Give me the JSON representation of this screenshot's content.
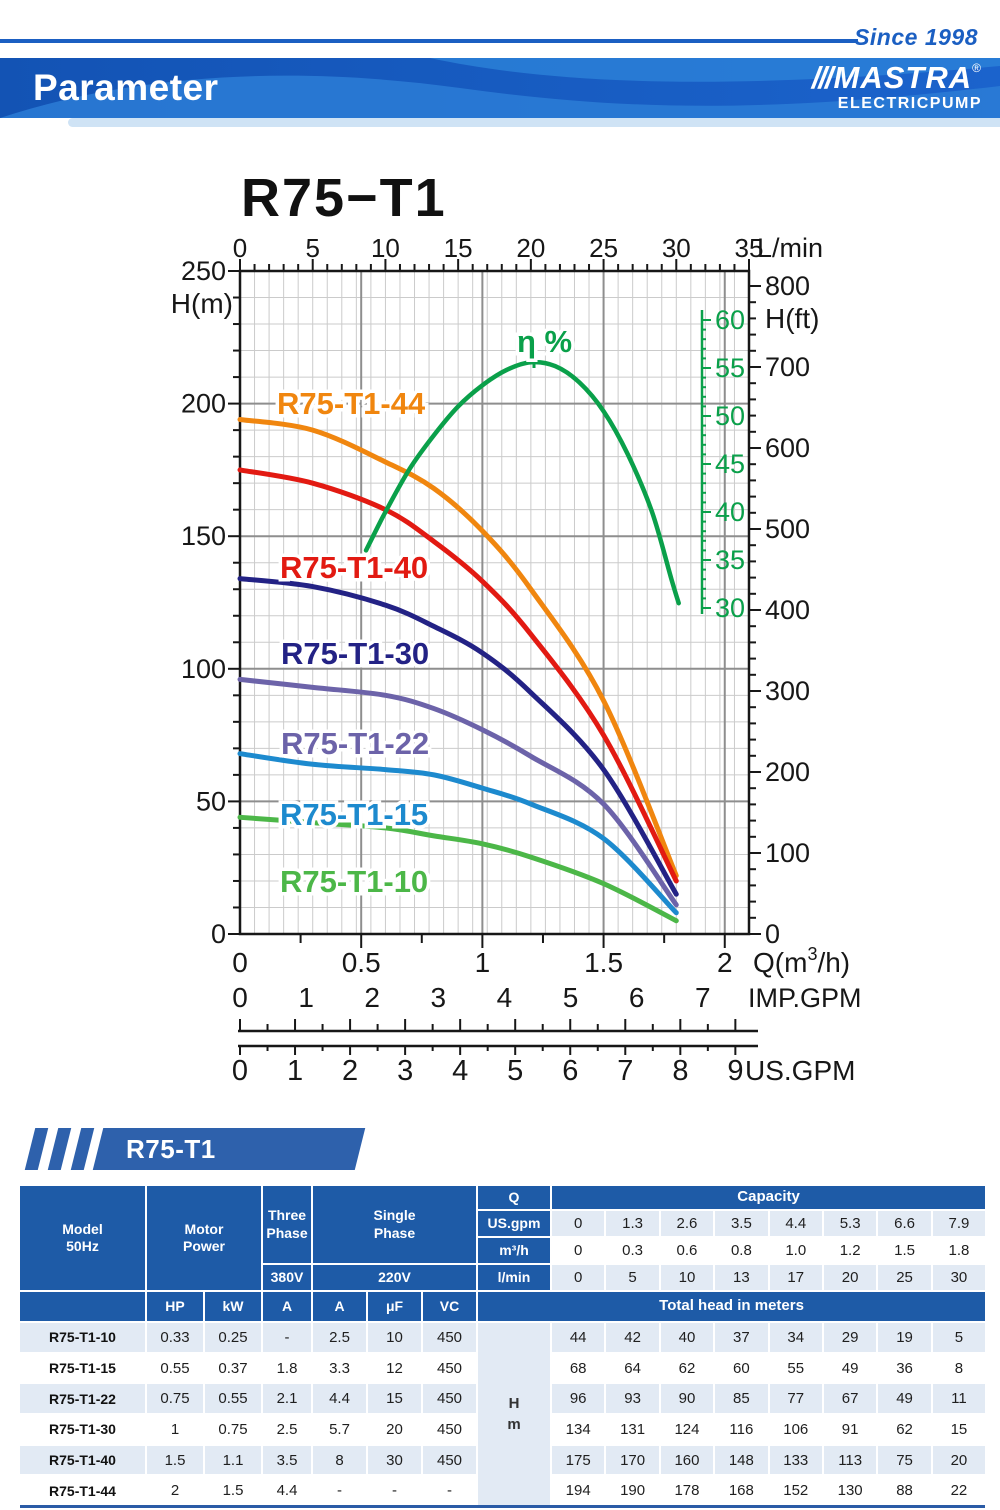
{
  "header": {
    "since": "Since 1998",
    "title": "Parameter",
    "brand": "MASTRA",
    "registered": "®",
    "brand_sub": "ELECTRICPUMP",
    "logo_slashes": "///",
    "accent_blue": "#1b5fc2"
  },
  "section": {
    "label": "R75-T1"
  },
  "chart_data": {
    "type": "line",
    "title": "R75−T1",
    "axes": {
      "top": {
        "label": "L/min",
        "ticks": [
          0,
          5,
          10,
          15,
          20,
          25,
          30,
          35
        ],
        "range": [
          0,
          35
        ]
      },
      "left": {
        "label": "H(m)",
        "ticks": [
          250,
          200,
          150,
          100,
          50,
          0
        ],
        "range": [
          0,
          250
        ]
      },
      "right": {
        "label": "H(ft)",
        "ticks": [
          800,
          700,
          600,
          500,
          400,
          300,
          200,
          100,
          0
        ],
        "range": [
          0,
          800
        ]
      },
      "efficiency": {
        "label": "η %",
        "ticks": [
          60,
          55,
          50,
          45,
          40,
          35,
          30
        ],
        "range": [
          30,
          60
        ],
        "color": "#0aa04a"
      },
      "bottom_q": {
        "label": "Q(m³/h)",
        "ticks": [
          "0",
          "0.5",
          "1",
          "1.5",
          "2"
        ],
        "range": [
          0,
          2.1
        ]
      },
      "bottom_imp": {
        "label": "IMP.GPM",
        "ticks": [
          0,
          1,
          2,
          3,
          4,
          5,
          6,
          7
        ]
      },
      "bottom_us": {
        "label": "US.GPM",
        "ticks": [
          0,
          1,
          2,
          3,
          4,
          5,
          6,
          7,
          8,
          9
        ]
      }
    },
    "grid": {
      "minor_color": "#cbcbcb",
      "major_color": "#8e8e8e",
      "axis_color": "#171717"
    },
    "q_values": [
      0,
      0.3,
      0.6,
      0.8,
      1.0,
      1.2,
      1.5,
      1.8
    ],
    "series": [
      {
        "name": "R75-T1-44",
        "color": "#f0860f",
        "values": [
          194,
          190,
          178,
          168,
          152,
          130,
          88,
          22
        ]
      },
      {
        "name": "R75-T1-40",
        "color": "#e21a12",
        "values": [
          175,
          170,
          160,
          148,
          133,
          113,
          75,
          20
        ]
      },
      {
        "name": "R75-T1-30",
        "color": "#232285",
        "values": [
          134,
          131,
          124,
          116,
          106,
          91,
          62,
          15
        ]
      },
      {
        "name": "R75-T1-22",
        "color": "#6c63a9",
        "values": [
          96,
          93,
          90,
          85,
          77,
          67,
          49,
          11
        ]
      },
      {
        "name": "R75-T1-15",
        "color": "#1d8ace",
        "values": [
          68,
          64,
          62,
          60,
          55,
          49,
          36,
          8
        ]
      },
      {
        "name": "R75-T1-10",
        "color": "#4cb748",
        "values": [
          44,
          42,
          40,
          37,
          34,
          29,
          19,
          5
        ]
      }
    ],
    "efficiency_curve": {
      "name": "η %",
      "color": "#0aa04a",
      "points": [
        [
          0.52,
          36
        ],
        [
          0.6,
          40
        ],
        [
          0.7,
          44.5
        ],
        [
          0.8,
          48
        ],
        [
          0.9,
          51
        ],
        [
          1.0,
          53.2
        ],
        [
          1.1,
          54.8
        ],
        [
          1.2,
          55.6
        ],
        [
          1.3,
          55.2
        ],
        [
          1.4,
          53.5
        ],
        [
          1.5,
          50.5
        ],
        [
          1.6,
          46
        ],
        [
          1.7,
          40
        ],
        [
          1.78,
          33
        ],
        [
          1.81,
          30.5
        ]
      ]
    }
  },
  "table": {
    "header": {
      "model_line1": "Model",
      "model_line2": "50Hz",
      "motor_line1": "Motor",
      "motor_line2": "Power",
      "three_line1": "Three",
      "three_line2": "Phase",
      "single_line1": "Single",
      "single_line2": "Phase",
      "v380": "380V",
      "v220": "220V",
      "q": "Q",
      "us_gpm": "US.gpm",
      "m3h": "m³/h",
      "lmin": "l/min",
      "capacity": "Capacity",
      "total_head": "Total head in meters",
      "hp": "HP",
      "kw": "kW",
      "a_three": "A",
      "a_single": "A",
      "uf": "μF",
      "vc": "VC",
      "hm_line1": "H",
      "hm_line2": "m"
    },
    "capacity_rows": {
      "us_gpm": [
        "0",
        "1.3",
        "2.6",
        "3.5",
        "4.4",
        "5.3",
        "6.6",
        "7.9"
      ],
      "m3h": [
        "0",
        "0.3",
        "0.6",
        "0.8",
        "1.0",
        "1.2",
        "1.5",
        "1.8"
      ],
      "lmin": [
        "0",
        "5",
        "10",
        "13",
        "17",
        "20",
        "25",
        "30"
      ]
    },
    "rows": [
      {
        "model": "R75-T1-10",
        "hp": "0.33",
        "kw": "0.25",
        "a3": "-",
        "a1": "2.5",
        "uf": "10",
        "vc": "450",
        "heads": [
          "44",
          "42",
          "40",
          "37",
          "34",
          "29",
          "19",
          "5"
        ]
      },
      {
        "model": "R75-T1-15",
        "hp": "0.55",
        "kw": "0.37",
        "a3": "1.8",
        "a1": "3.3",
        "uf": "12",
        "vc": "450",
        "heads": [
          "68",
          "64",
          "62",
          "60",
          "55",
          "49",
          "36",
          "8"
        ]
      },
      {
        "model": "R75-T1-22",
        "hp": "0.75",
        "kw": "0.55",
        "a3": "2.1",
        "a1": "4.4",
        "uf": "15",
        "vc": "450",
        "heads": [
          "96",
          "93",
          "90",
          "85",
          "77",
          "67",
          "49",
          "11"
        ]
      },
      {
        "model": "R75-T1-30",
        "hp": "1",
        "kw": "0.75",
        "a3": "2.5",
        "a1": "5.7",
        "uf": "20",
        "vc": "450",
        "heads": [
          "134",
          "131",
          "124",
          "116",
          "106",
          "91",
          "62",
          "15"
        ]
      },
      {
        "model": "R75-T1-40",
        "hp": "1.5",
        "kw": "1.1",
        "a3": "3.5",
        "a1": "8",
        "uf": "30",
        "vc": "450",
        "heads": [
          "175",
          "170",
          "160",
          "148",
          "133",
          "113",
          "75",
          "20"
        ]
      },
      {
        "model": "R75-T1-44",
        "hp": "2",
        "kw": "1.5",
        "a3": "4.4",
        "a1": "-",
        "uf": "-",
        "vc": "-",
        "heads": [
          "194",
          "190",
          "178",
          "168",
          "152",
          "130",
          "88",
          "22"
        ]
      }
    ]
  }
}
